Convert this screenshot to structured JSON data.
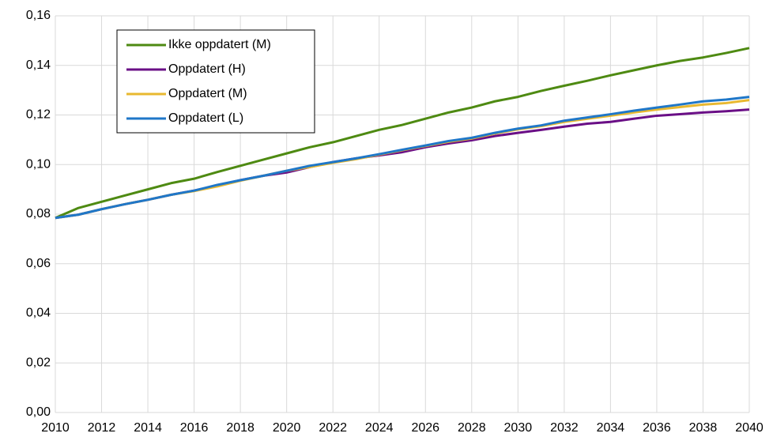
{
  "chart_data": {
    "type": "line",
    "x": [
      2010,
      2011,
      2012,
      2013,
      2014,
      2015,
      2016,
      2017,
      2018,
      2019,
      2020,
      2021,
      2022,
      2023,
      2024,
      2025,
      2026,
      2027,
      2028,
      2029,
      2030,
      2031,
      2032,
      2033,
      2034,
      2035,
      2036,
      2037,
      2038,
      2039,
      2040
    ],
    "xlim": [
      2010,
      2040
    ],
    "xticks": [
      2010,
      2012,
      2014,
      2016,
      2018,
      2020,
      2022,
      2024,
      2026,
      2028,
      2030,
      2032,
      2034,
      2036,
      2038,
      2040
    ],
    "ylim": [
      0,
      0.16
    ],
    "yticks": [
      {
        "value": 0,
        "label": "0,00"
      },
      {
        "value": 0.02,
        "label": "0,02"
      },
      {
        "value": 0.04,
        "label": "0,04"
      },
      {
        "value": 0.06,
        "label": "0,06"
      },
      {
        "value": 0.08,
        "label": "0,08"
      },
      {
        "value": 0.1,
        "label": "0,10"
      },
      {
        "value": 0.12,
        "label": "0,12"
      },
      {
        "value": 0.14,
        "label": "0,14"
      },
      {
        "value": 0.16,
        "label": "0,16"
      }
    ],
    "grid": true,
    "legend": "upper left",
    "series": [
      {
        "name": "Ikke oppdatert (M)",
        "color": "#4e8a12",
        "values": [
          0.0785,
          0.0825,
          0.085,
          0.0875,
          0.09,
          0.0925,
          0.0943,
          0.097,
          0.0995,
          0.102,
          0.1045,
          0.107,
          0.109,
          0.1115,
          0.114,
          0.116,
          0.1185,
          0.121,
          0.123,
          0.1255,
          0.1273,
          0.1297,
          0.1318,
          0.1338,
          0.136,
          0.138,
          0.14,
          0.1418,
          0.1432,
          0.145,
          0.147
        ]
      },
      {
        "name": "Oppdatert (H)",
        "color": "#6a0f86",
        "values": [
          0.0785,
          0.0798,
          0.082,
          0.084,
          0.0858,
          0.0878,
          0.0895,
          0.0915,
          0.0937,
          0.0955,
          0.0968,
          0.099,
          0.101,
          0.1025,
          0.1037,
          0.105,
          0.107,
          0.1085,
          0.1098,
          0.1115,
          0.1128,
          0.114,
          0.1153,
          0.1165,
          0.1172,
          0.1185,
          0.1197,
          0.1203,
          0.121,
          0.1215,
          0.1222
        ]
      },
      {
        "name": "Oppdatert (M)",
        "color": "#e8b830",
        "values": [
          0.0785,
          0.0798,
          0.082,
          0.084,
          0.0858,
          0.0878,
          0.0893,
          0.0912,
          0.0935,
          0.0955,
          0.0975,
          0.099,
          0.1007,
          0.1022,
          0.104,
          0.1058,
          0.1075,
          0.1092,
          0.1105,
          0.1125,
          0.1142,
          0.1155,
          0.1172,
          0.1185,
          0.1197,
          0.121,
          0.1222,
          0.1232,
          0.1242,
          0.1248,
          0.126
        ]
      },
      {
        "name": "Oppdatert (L)",
        "color": "#1f77c8",
        "values": [
          0.0785,
          0.0798,
          0.082,
          0.084,
          0.0858,
          0.0878,
          0.0895,
          0.0918,
          0.0937,
          0.0955,
          0.0975,
          0.0995,
          0.101,
          0.1025,
          0.1042,
          0.106,
          0.1077,
          0.1095,
          0.1108,
          0.1128,
          0.1145,
          0.1158,
          0.1177,
          0.119,
          0.1203,
          0.1217,
          0.123,
          0.1242,
          0.1255,
          0.1262,
          0.1273
        ]
      }
    ]
  }
}
